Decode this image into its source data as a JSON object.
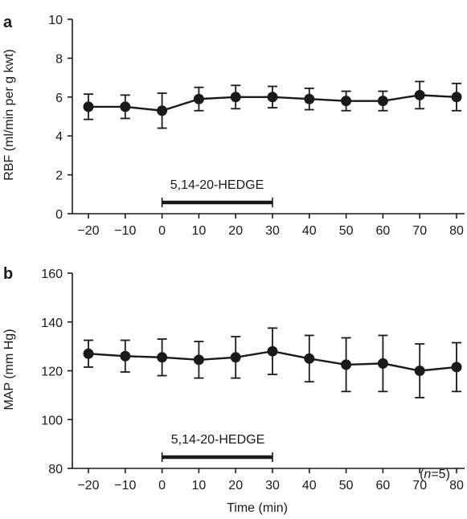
{
  "colors": {
    "ink": "#1a1a1a",
    "background": "#ffffff"
  },
  "chart_data": [
    {
      "type": "line",
      "panel_label": "a",
      "ylabel": "RBF (ml/min per g kwt)",
      "xlabel": "",
      "xlim": [
        -25,
        82
      ],
      "ylim": [
        0,
        10
      ],
      "xticks": [
        -20,
        -10,
        0,
        10,
        20,
        30,
        40,
        50,
        60,
        70,
        80
      ],
      "xtick_labels": [
        "−20",
        "−10",
        "0",
        "10",
        "20",
        "30",
        "40",
        "50",
        "60",
        "70",
        "80"
      ],
      "yticks": [
        0,
        2,
        4,
        6,
        8,
        10
      ],
      "ytick_labels": [
        "0",
        "2",
        "4",
        "6",
        "8",
        "10"
      ],
      "grid": false,
      "series": [
        {
          "x": [
            -20,
            -10,
            0,
            10,
            20,
            30,
            40,
            50,
            60,
            70,
            80
          ],
          "y": [
            5.5,
            5.5,
            5.3,
            5.9,
            6.0,
            6.0,
            5.9,
            5.8,
            5.8,
            6.1,
            6.0
          ],
          "err": [
            0.65,
            0.6,
            0.9,
            0.6,
            0.6,
            0.55,
            0.55,
            0.5,
            0.5,
            0.7,
            0.7
          ]
        }
      ],
      "treatment": {
        "label": "5,14-20-HEDGE",
        "x_start": 0,
        "x_end": 30
      },
      "note": ""
    },
    {
      "type": "line",
      "panel_label": "b",
      "ylabel": "MAP (mm Hg)",
      "xlabel": "Time (min)",
      "xlim": [
        -25,
        82
      ],
      "ylim": [
        80,
        160
      ],
      "xticks": [
        -20,
        -10,
        0,
        10,
        20,
        30,
        40,
        50,
        60,
        70,
        80
      ],
      "xtick_labels": [
        "−20",
        "−10",
        "0",
        "10",
        "20",
        "30",
        "40",
        "50",
        "60",
        "70",
        "80"
      ],
      "yticks": [
        80,
        100,
        120,
        140,
        160
      ],
      "ytick_labels": [
        "80",
        "100",
        "120",
        "140",
        "160"
      ],
      "grid": false,
      "series": [
        {
          "x": [
            -20,
            -10,
            0,
            10,
            20,
            30,
            40,
            50,
            60,
            70,
            80
          ],
          "y": [
            127,
            126,
            125.5,
            124.5,
            125.5,
            128,
            125,
            122.5,
            123,
            120,
            121.5
          ],
          "err": [
            5.5,
            6.5,
            7.5,
            7.5,
            8.5,
            9.5,
            9.5,
            11,
            11.5,
            11,
            10
          ]
        }
      ],
      "treatment": {
        "label": "5,14-20-HEDGE",
        "x_start": 0,
        "x_end": 30
      },
      "note": "(n=5)"
    }
  ]
}
